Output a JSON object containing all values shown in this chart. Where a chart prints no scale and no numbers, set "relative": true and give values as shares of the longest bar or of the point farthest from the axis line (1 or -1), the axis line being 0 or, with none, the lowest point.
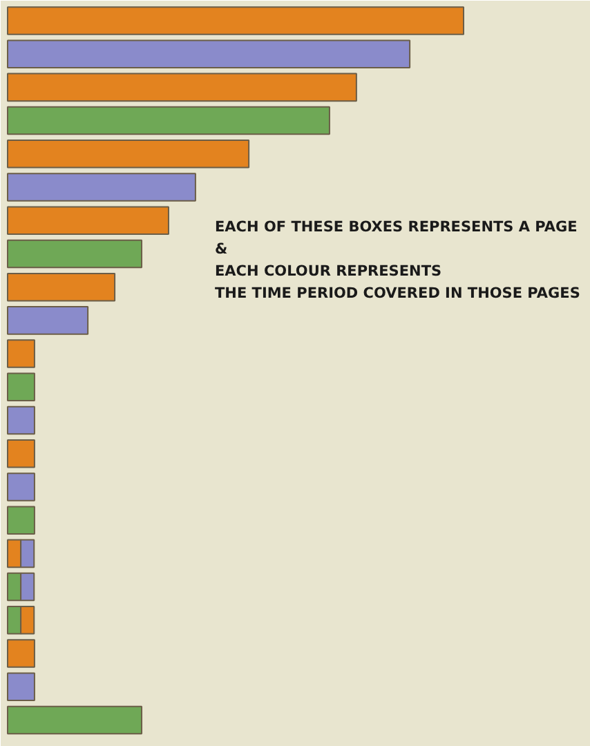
{
  "chart_data": {
    "type": "bar",
    "orientation": "horizontal",
    "stacked": true,
    "relative": true,
    "categories": [
      null,
      null,
      null,
      null,
      null,
      null,
      null,
      null,
      null,
      null,
      null,
      null,
      null,
      null,
      null,
      null,
      null,
      null,
      null,
      null,
      null,
      null
    ],
    "series": [
      {
        "colors": [
          "#e3831f",
          "#8a8bcb",
          "#e3831f",
          "#6fa856",
          "#e3831f",
          "#8a8bcb",
          "#e3831f",
          "#6fa856",
          "#e3831f",
          "#8a8bcb",
          "#e3831f",
          "#6fa856",
          "#8a8bcb",
          "#e3831f",
          "#8a8bcb",
          "#6fa856",
          "#e3831f",
          "#6fa856",
          "#6fa856",
          "#e3831f",
          "#8a8bcb",
          "#6fa856"
        ],
        "values": [
          1,
          0.882,
          0.765,
          0.706,
          0.529,
          0.412,
          0.353,
          0.294,
          0.235,
          0.176,
          0.059,
          0.059,
          0.059,
          0.059,
          0.059,
          0.059,
          0.029,
          0.029,
          0.029,
          0.059,
          0.059,
          0.294
        ]
      },
      {
        "colors": [
          null,
          null,
          null,
          null,
          null,
          null,
          null,
          null,
          null,
          null,
          null,
          null,
          null,
          null,
          null,
          null,
          "#8a8bcb",
          "#8a8bcb",
          "#e3831f",
          null,
          null,
          null
        ],
        "values": [
          null,
          null,
          null,
          null,
          null,
          null,
          null,
          null,
          null,
          null,
          null,
          null,
          null,
          null,
          null,
          null,
          0.029,
          0.029,
          0.029,
          null,
          null,
          null
        ]
      }
    ],
    "annotations": [
      "EACH OF THESE BOXES REPRESENTS A PAGE",
      "&",
      "EACH COLOUR REPRESENTS",
      "THE TIME PERIOD COVERED IN THOSE PAGES"
    ]
  }
}
